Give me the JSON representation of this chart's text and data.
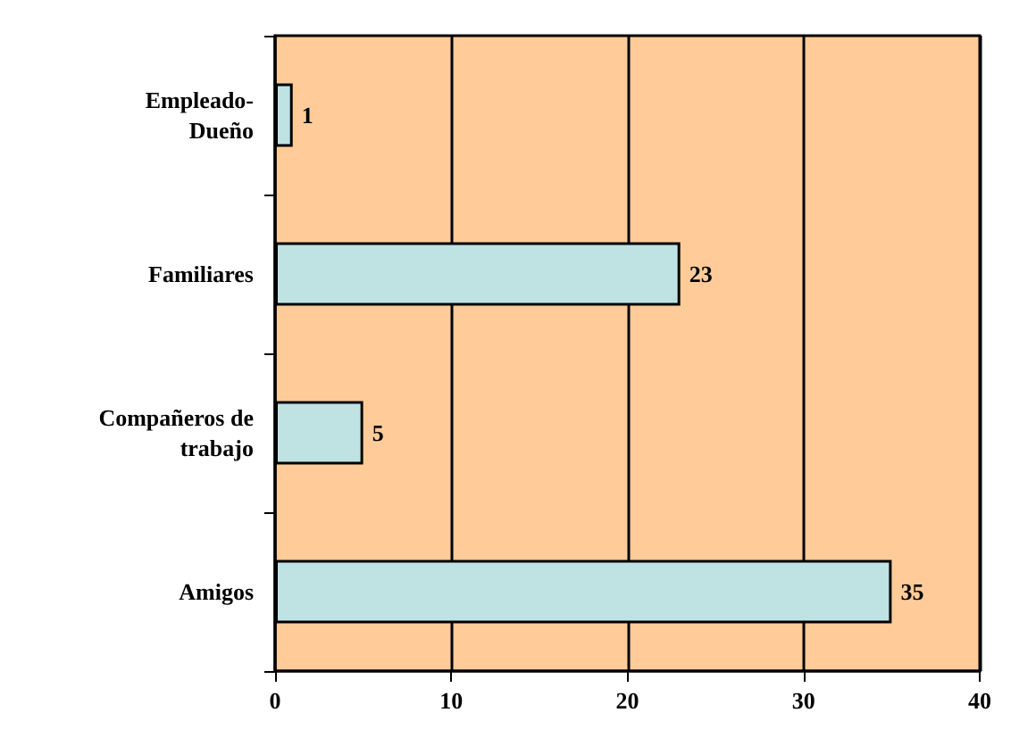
{
  "chart_data": {
    "type": "bar",
    "orientation": "horizontal",
    "categories": [
      "Empleado-\nDueño",
      "Familiares",
      "Compañeros de\ntrabajo",
      "Amigos"
    ],
    "values": [
      1,
      23,
      5,
      35
    ],
    "color": "#bfe3e3",
    "xlim": [
      0,
      40
    ],
    "xticks": [
      0,
      10,
      20,
      30,
      40
    ],
    "grid": "x",
    "data_labels": true
  }
}
